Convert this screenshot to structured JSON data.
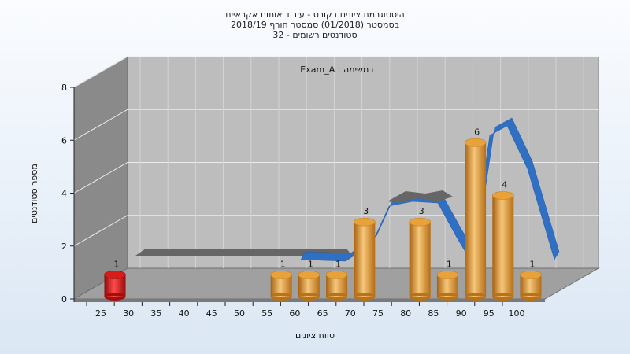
{
  "chart_data": {
    "type": "bar",
    "title_lines": [
      "היסטוגרמת ציונים בקורס - עיבוד אותות אקראיים",
      "בסמסטר  (01/2018)  סמסטר חורף 2018/19",
      "סטודנטים רשומים - 32"
    ],
    "legend_label": "Exam_A : במשימה",
    "xlabel": "טווח ציונים",
    "ylabel": "מספר סטודנטים",
    "categories": [
      "25",
      "30",
      "35",
      "40",
      "45",
      "50",
      "55",
      "60",
      "65",
      "70",
      "75",
      "80",
      "85",
      "90",
      "95",
      "100"
    ],
    "values": [
      1,
      0,
      0,
      0,
      0,
      0,
      1,
      1,
      1,
      3,
      0,
      3,
      1,
      6,
      4,
      1
    ],
    "yticks": [
      0,
      2,
      4,
      6,
      8
    ],
    "ylim": [
      0,
      8
    ],
    "highlight_index": 0,
    "colors": {
      "bar": "#e9a23a",
      "bar_highlight": "#d81b1b",
      "curve": "#2f6fc4",
      "curve_back": "#666666",
      "wall": "#bdbdbd",
      "side_wall": "#8a8a8a",
      "floor": "#a0a0a0"
    }
  }
}
